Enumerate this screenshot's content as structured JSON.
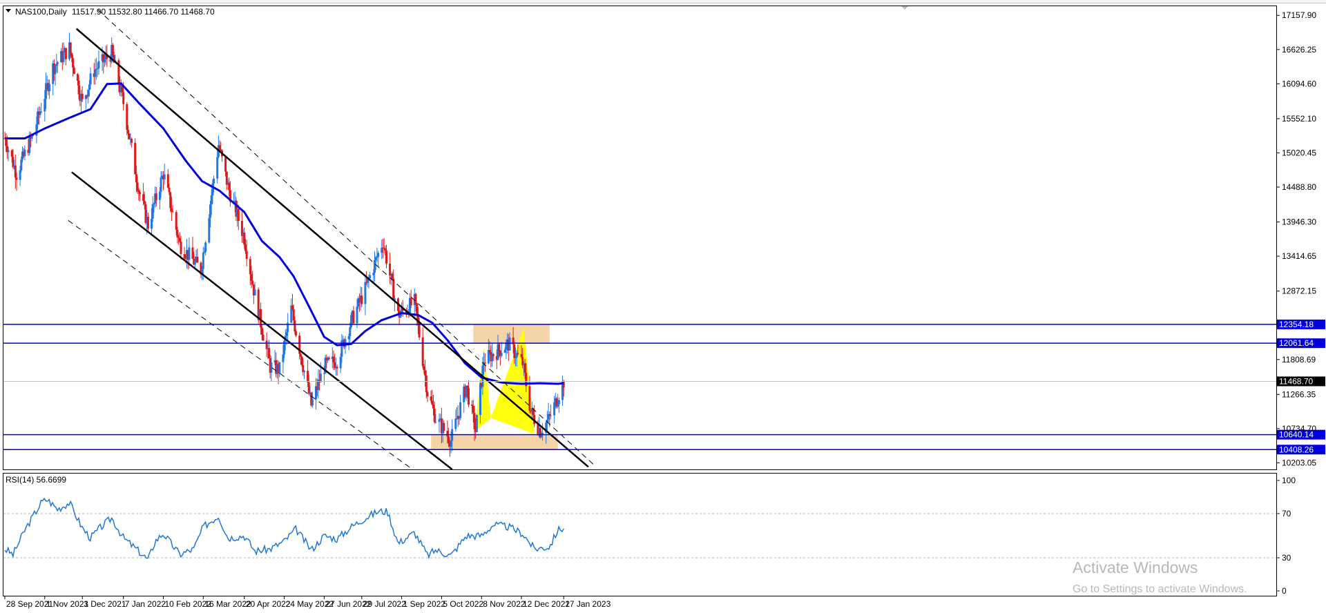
{
  "chart_data": [
    {
      "type": "candlestick",
      "symbol_label": "NAS100,Daily",
      "ohlc_label": "11517.90 11532.80 11466.70 11468.70",
      "ylim": [
        10100,
        17300
      ],
      "price_ticks": [
        "17157.90",
        "16626.25",
        "16094.60",
        "15552.10",
        "15020.45",
        "14488.80",
        "13946.30",
        "13414.65",
        "12872.15",
        "11808.69",
        "11266.35",
        "10734.70",
        "10203.05"
      ],
      "price_tick_values": [
        17157.9,
        16626.25,
        16094.6,
        15552.1,
        15020.45,
        14488.8,
        13946.3,
        13414.65,
        12872.15,
        11808.69,
        11266.35,
        10734.7,
        10203.05
      ],
      "date_labels": [
        "28 Sep 2021",
        "1 Nov 2021",
        "3 Dec 2021",
        "7 Jan 2022",
        "10 Feb 2022",
        "16 Mar 2022",
        "20 Apr 2022",
        "24 May 2022",
        "27 Jun 2022",
        "29 Jul 2022",
        "1 Sep 2022",
        "5 Oct 2022",
        "8 Nov 2022",
        "12 Dec 2022",
        "17 Jan 2023"
      ],
      "horizontal_levels": [
        {
          "label": "12354.18",
          "value": 12354.18,
          "color": "#0000dd"
        },
        {
          "label": "12061.64",
          "value": 12061.64,
          "color": "#0000dd"
        },
        {
          "label": "10640.14",
          "value": 10640.14,
          "color": "#0000dd"
        },
        {
          "label": "10408.26",
          "value": 10408.26,
          "color": "#0000dd"
        }
      ],
      "current_price": {
        "label": "11468.70",
        "value": 11468.7
      },
      "zones": [
        {
          "from_date": "1 Nov 2022",
          "to_date": "5 Jan 2023",
          "low": 12070,
          "high": 12360,
          "color": "#f5d5a8"
        },
        {
          "from_date": "26 Sep 2022",
          "to_date": "12 Jan 2023",
          "low": 10410,
          "high": 10640,
          "color": "#f5d5a8"
        }
      ],
      "channel": {
        "upper_solid": [
          {
            "date": "28 Nov 2021",
            "value": 16950
          },
          {
            "date": "7 Feb 2023",
            "value": 10140
          }
        ],
        "lower_solid": [
          {
            "date": "24 Nov 2021",
            "value": 14720
          },
          {
            "date": "14 Oct 2022",
            "value": 10100
          }
        ],
        "upper_dashed": [
          {
            "date": "16 Dec 2021",
            "value": 17250
          },
          {
            "date": "13 Feb 2023",
            "value": 10150
          }
        ],
        "lower_dashed": [
          {
            "date": "21 Nov 2021",
            "value": 13970
          },
          {
            "date": "8 Sep 2022",
            "value": 10130
          }
        ]
      },
      "moving_average": {
        "color": "#0000dd",
        "points": [
          [
            "28 Sep 2021",
            15245
          ],
          [
            "15 Oct 2021",
            15245
          ],
          [
            "1 Nov 2021",
            15400
          ],
          [
            "20 Nov 2021",
            15550
          ],
          [
            "10 Dec 2021",
            15700
          ],
          [
            "24 Dec 2021",
            16090
          ],
          [
            "5 Jan 2022",
            16100
          ],
          [
            "20 Jan 2022",
            15800
          ],
          [
            "10 Feb 2022",
            15400
          ],
          [
            "1 Mar 2022",
            14900
          ],
          [
            "15 Mar 2022",
            14580
          ],
          [
            "30 Mar 2022",
            14430
          ],
          [
            "20 Apr 2022",
            14100
          ],
          [
            "5 May 2022",
            13650
          ],
          [
            "20 May 2022",
            13400
          ],
          [
            "1 Jun 2022",
            13100
          ],
          [
            "15 Jun 2022",
            12600
          ],
          [
            "27 Jun 2022",
            12160
          ],
          [
            "8 Jul 2022",
            12030
          ],
          [
            "20 Jul 2022",
            12050
          ],
          [
            "1 Aug 2022",
            12250
          ],
          [
            "15 Aug 2022",
            12420
          ],
          [
            "1 Sep 2022",
            12530
          ],
          [
            "15 Sep 2022",
            12500
          ],
          [
            "27 Sep 2022",
            12380
          ],
          [
            "10 Oct 2022",
            12110
          ],
          [
            "25 Oct 2022",
            11750
          ],
          [
            "8 Nov 2022",
            11530
          ],
          [
            "25 Nov 2022",
            11450
          ],
          [
            "12 Dec 2022",
            11430
          ],
          [
            "28 Dec 2022",
            11440
          ],
          [
            "12 Jan 2023",
            11430
          ],
          [
            "17 Jan 2023",
            11440
          ]
        ]
      },
      "harmonic_pattern": {
        "color": "#ffff00",
        "points": [
          [
            "2 Nov 2022",
            10680
          ],
          [
            "10 Nov 2022",
            12000
          ],
          [
            "16 Nov 2022",
            10900
          ],
          [
            "14 Dec 2022",
            12300
          ],
          [
            "23 Dec 2022",
            10650
          ]
        ]
      },
      "price_path": [
        [
          "28 Sep 2021",
          15250
        ],
        [
          "8 Oct 2021",
          14700
        ],
        [
          "22 Oct 2021",
          15300
        ],
        [
          "8 Nov 2021",
          16350
        ],
        [
          "22 Nov 2021",
          16650
        ],
        [
          "3 Dec 2021",
          15800
        ],
        [
          "13 Dec 2021",
          16300
        ],
        [
          "28 Dec 2021",
          16570
        ],
        [
          "7 Jan 2022",
          15800
        ],
        [
          "20 Jan 2022",
          14450
        ],
        [
          "28 Jan 2022",
          13900
        ],
        [
          "10 Feb 2022",
          14700
        ],
        [
          "24 Feb 2022",
          13600
        ],
        [
          "14 Mar 2022",
          13200
        ],
        [
          "29 Mar 2022",
          15150
        ],
        [
          "6 Apr 2022",
          14500
        ],
        [
          "20 Apr 2022",
          13700
        ],
        [
          "29 Apr 2022",
          12800
        ],
        [
          "12 May 2022",
          11700
        ],
        [
          "20 May 2022",
          11650
        ],
        [
          "30 May 2022",
          12600
        ],
        [
          "16 Jun 2022",
          11100
        ],
        [
          "27 Jun 2022",
          11700
        ],
        [
          "8 Jul 2022",
          11800
        ],
        [
          "20 Jul 2022",
          12400
        ],
        [
          "1 Aug 2022",
          12900
        ],
        [
          "16 Aug 2022",
          13650
        ],
        [
          "29 Aug 2022",
          12500
        ],
        [
          "12 Sep 2022",
          12700
        ],
        [
          "23 Sep 2022",
          11300
        ],
        [
          "30 Sep 2022",
          10900
        ],
        [
          "13 Oct 2022",
          10550
        ],
        [
          "26 Oct 2022",
          11400
        ],
        [
          "3 Nov 2022",
          10700
        ],
        [
          "10 Nov 2022",
          11800
        ],
        [
          "1 Dec 2022",
          12050
        ],
        [
          "13 Dec 2022",
          11750
        ],
        [
          "20 Dec 2022",
          11000
        ],
        [
          "28 Dec 2022",
          10700
        ],
        [
          "5 Jan 2023",
          10900
        ],
        [
          "17 Jan 2023",
          11470
        ]
      ]
    },
    {
      "type": "line",
      "indicator_label": "RSI(14) 56.6699",
      "ylim": [
        0,
        100
      ],
      "ticks": [
        "100",
        "70",
        "30",
        "0"
      ],
      "tick_values": [
        100,
        70,
        30,
        0
      ],
      "levels": [
        70,
        30
      ],
      "color": "#1e78d2",
      "points": [
        [
          "28 Sep 2021",
          38
        ],
        [
          "5 Oct 2021",
          33
        ],
        [
          "15 Oct 2021",
          55
        ],
        [
          "29 Oct 2021",
          80
        ],
        [
          "3 Nov 2021",
          83
        ],
        [
          "12 Nov 2021",
          74
        ],
        [
          "22 Nov 2021",
          80
        ],
        [
          "3 Dec 2021",
          57
        ],
        [
          "10 Dec 2021",
          48
        ],
        [
          "18 Dec 2021",
          57
        ],
        [
          "28 Dec 2021",
          66
        ],
        [
          "7 Jan 2022",
          48
        ],
        [
          "20 Jan 2022",
          36
        ],
        [
          "28 Jan 2022",
          28
        ],
        [
          "3 Feb 2022",
          45
        ],
        [
          "10 Feb 2022",
          52
        ],
        [
          "24 Feb 2022",
          33
        ],
        [
          "8 Mar 2022",
          38
        ],
        [
          "16 Mar 2022",
          58
        ],
        [
          "29 Mar 2022",
          68
        ],
        [
          "6 Apr 2022",
          48
        ],
        [
          "20 Apr 2022",
          50
        ],
        [
          "29 Apr 2022",
          36
        ],
        [
          "12 May 2022",
          38
        ],
        [
          "24 May 2022",
          45
        ],
        [
          "3 Jun 2022",
          56
        ],
        [
          "16 Jun 2022",
          37
        ],
        [
          "27 Jun 2022",
          50
        ],
        [
          "8 Jul 2022",
          47
        ],
        [
          "20 Jul 2022",
          58
        ],
        [
          "1 Aug 2022",
          66
        ],
        [
          "12 Aug 2022",
          72
        ],
        [
          "20 Aug 2022",
          72
        ],
        [
          "29 Aug 2022",
          43
        ],
        [
          "12 Sep 2022",
          53
        ],
        [
          "23 Sep 2022",
          32
        ],
        [
          "30 Sep 2022",
          37
        ],
        [
          "13 Oct 2022",
          32
        ],
        [
          "26 Oct 2022",
          50
        ],
        [
          "8 Nov 2022",
          50
        ],
        [
          "18 Nov 2022",
          60
        ],
        [
          "1 Dec 2022",
          58
        ],
        [
          "13 Dec 2022",
          52
        ],
        [
          "23 Dec 2022",
          38
        ],
        [
          "5 Jan 2023",
          40
        ],
        [
          "12 Jan 2023",
          55
        ],
        [
          "17 Jan 2023",
          57
        ]
      ]
    }
  ],
  "watermark": {
    "title": "Activate Windows",
    "subtitle": "Go to Settings to activate Windows."
  },
  "colors": {
    "bull": "#1e78e6",
    "bear": "#e01818",
    "channel": "#000000",
    "axis_text": "#000000"
  }
}
